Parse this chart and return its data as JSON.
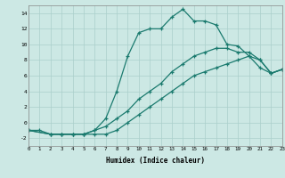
{
  "xlabel": "Humidex (Indice chaleur)",
  "bg_color": "#cce8e4",
  "grid_color": "#aacfcb",
  "line_color": "#1a7a6e",
  "xlim": [
    0,
    23
  ],
  "ylim": [
    -3,
    15
  ],
  "xticks": [
    0,
    1,
    2,
    3,
    4,
    5,
    6,
    7,
    8,
    9,
    10,
    11,
    12,
    13,
    14,
    15,
    16,
    17,
    18,
    19,
    20,
    21,
    22,
    23
  ],
  "yticks": [
    -2,
    0,
    2,
    4,
    6,
    8,
    10,
    12,
    14
  ],
  "series1_x": [
    0,
    1,
    2,
    3,
    4,
    5,
    6,
    7,
    8,
    9,
    10,
    11,
    12,
    13,
    14,
    15,
    16,
    17,
    18,
    19,
    20,
    21,
    22,
    23
  ],
  "series1_y": [
    -1,
    -1,
    -1.5,
    -1.5,
    -1.5,
    -1.5,
    -1.5,
    -1.5,
    -1,
    0,
    1,
    2,
    3,
    4,
    5,
    6,
    6.5,
    7,
    7.5,
    8,
    8.5,
    7,
    6.3,
    6.8
  ],
  "series2_x": [
    0,
    2,
    3,
    4,
    5,
    6,
    7,
    8,
    9,
    10,
    11,
    12,
    13,
    14,
    15,
    16,
    17,
    18,
    19,
    20,
    21,
    22,
    23
  ],
  "series2_y": [
    -1,
    -1.5,
    -1.5,
    -1.5,
    -1.5,
    -1,
    -0.5,
    0.5,
    1.5,
    3,
    4,
    5,
    6.5,
    7.5,
    8.5,
    9,
    9.5,
    9.5,
    9,
    9,
    8,
    6.3,
    6.8
  ],
  "series3_x": [
    0,
    2,
    3,
    4,
    5,
    6,
    7,
    8,
    9,
    10,
    11,
    12,
    13,
    14,
    15,
    16,
    17,
    18,
    19,
    20,
    21,
    22,
    23
  ],
  "series3_y": [
    -1,
    -1.5,
    -1.5,
    -1.5,
    -1.5,
    -1,
    0.5,
    4,
    8.5,
    11.5,
    12,
    12,
    13.5,
    14.5,
    13,
    13,
    12.5,
    10,
    9.8,
    8.5,
    8,
    6.3,
    6.8
  ]
}
